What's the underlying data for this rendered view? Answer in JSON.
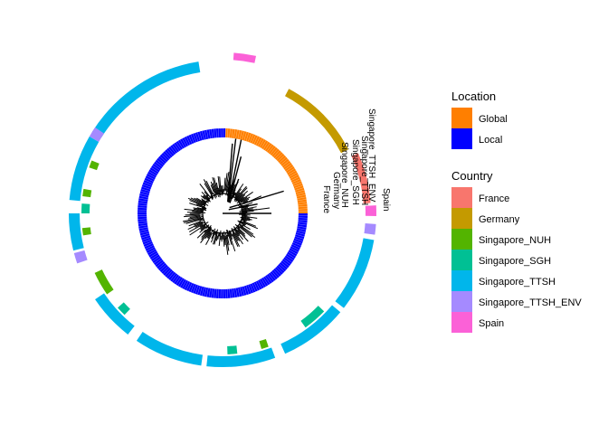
{
  "chart_data": {
    "type": "circular-phylogenetic-tree",
    "legends": [
      {
        "title": "Location",
        "entries": [
          {
            "label": "Global",
            "color": "#FF7F00"
          },
          {
            "label": "Local",
            "color": "#0000FF"
          }
        ]
      },
      {
        "title": "Country",
        "entries": [
          {
            "label": "France",
            "color": "#F8766D"
          },
          {
            "label": "Germany",
            "color": "#C49A00"
          },
          {
            "label": "Singapore_NUH",
            "color": "#53B400"
          },
          {
            "label": "Singapore_SGH",
            "color": "#00C094"
          },
          {
            "label": "Singapore_TTSH",
            "color": "#00B6EB"
          },
          {
            "label": "Singapore_TTSH_ENV",
            "color": "#A58AFF"
          },
          {
            "label": "Spain",
            "color": "#FB61D7"
          }
        ]
      }
    ],
    "tip_labels": [
      "Spain",
      "Singapore_TTSH_ENV",
      "Singapore_TTSH",
      "Singapore_SGH",
      "Singapore_NUH",
      "Germany",
      "France"
    ],
    "location_ring": [
      {
        "location": "Global",
        "start_deg": 0,
        "end_deg": 88
      },
      {
        "location": "Local",
        "start_deg": 88,
        "end_deg": 360
      }
    ],
    "country_ring": [
      {
        "country": "Spain",
        "start_deg": -1,
        "end_deg": 3,
        "track": "outer"
      },
      {
        "country": "France",
        "start_deg": 4,
        "end_deg": 24,
        "track": "inner"
      },
      {
        "country": "Germany",
        "start_deg": 27,
        "end_deg": 62,
        "track": "middle"
      },
      {
        "country": "Spain",
        "start_deg": 78,
        "end_deg": 86,
        "track": "outermost"
      },
      {
        "country": "Singapore_TTSH",
        "start_deg": 99,
        "end_deg": 148,
        "track": "outer"
      },
      {
        "country": "Singapore_TTSH_ENV",
        "start_deg": 146,
        "end_deg": 150,
        "track": "outer"
      },
      {
        "country": "Singapore_TTSH",
        "start_deg": 150,
        "end_deg": 175,
        "track": "outer"
      },
      {
        "country": "Singapore_NUH",
        "start_deg": 158,
        "end_deg": 161,
        "track": "middle"
      },
      {
        "country": "Singapore_NUH",
        "start_deg": 170,
        "end_deg": 173,
        "track": "middle"
      },
      {
        "country": "Singapore_SGH",
        "start_deg": 176,
        "end_deg": 180,
        "track": "middle"
      },
      {
        "country": "Singapore_TTSH",
        "start_deg": 180,
        "end_deg": 194,
        "track": "outer"
      },
      {
        "country": "Singapore_NUH",
        "start_deg": 186,
        "end_deg": 189,
        "track": "middle"
      },
      {
        "country": "Singapore_TTSH_ENV",
        "start_deg": 195,
        "end_deg": 199,
        "track": "outer"
      },
      {
        "country": "Singapore_NUH",
        "start_deg": 205,
        "end_deg": 215,
        "track": "middle"
      },
      {
        "country": "Singapore_TTSH",
        "start_deg": 214,
        "end_deg": 232,
        "track": "outer"
      },
      {
        "country": "Singapore_SGH",
        "start_deg": 222,
        "end_deg": 226,
        "track": "middle"
      },
      {
        "country": "Singapore_TTSH",
        "start_deg": 236,
        "end_deg": 262,
        "track": "outer"
      },
      {
        "country": "Singapore_TTSH",
        "start_deg": 264,
        "end_deg": 290,
        "track": "outer"
      },
      {
        "country": "Singapore_SGH",
        "start_deg": 272,
        "end_deg": 276,
        "track": "middle"
      },
      {
        "country": "Singapore_NUH",
        "start_deg": 286,
        "end_deg": 289,
        "track": "middle"
      },
      {
        "country": "Singapore_TTSH",
        "start_deg": 294,
        "end_deg": 320,
        "track": "outer"
      },
      {
        "country": "Singapore_SGH",
        "start_deg": 306,
        "end_deg": 316,
        "track": "middle"
      },
      {
        "country": "Singapore_TTSH",
        "start_deg": 322,
        "end_deg": 350,
        "track": "outer"
      },
      {
        "country": "Singapore_TTSH_ENV",
        "start_deg": 352,
        "end_deg": 356,
        "track": "outer"
      }
    ]
  }
}
